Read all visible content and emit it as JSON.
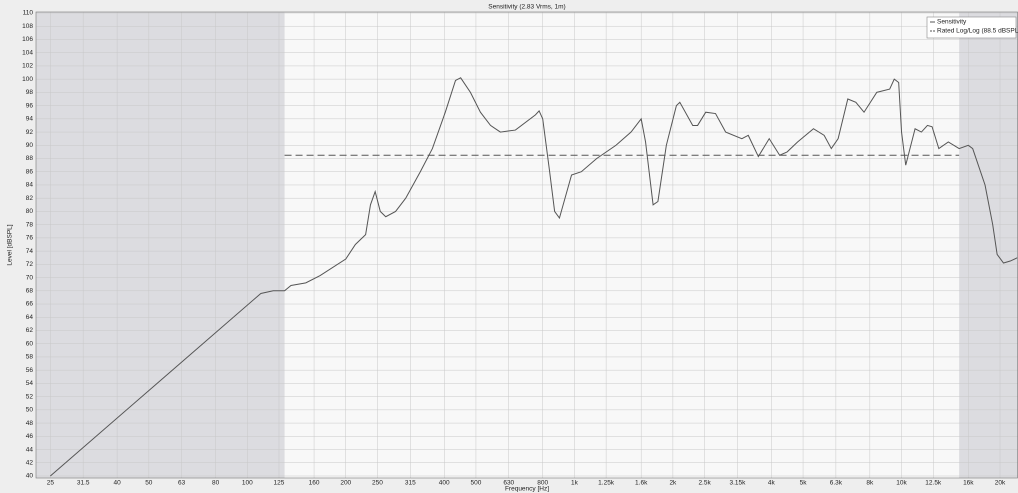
{
  "chart_data": {
    "type": "line",
    "title": "Sensitivity (2.83 Vrms, 1m)",
    "x_label": "Frequency [Hz]",
    "y_label": "Level [dBSPL]",
    "x_scale": "log",
    "xlim": [
      22.6,
      22700
    ],
    "ylim": [
      40,
      110
    ],
    "xticks": [
      25,
      31.5,
      40,
      50,
      63,
      80,
      100,
      125,
      160,
      200,
      250,
      315,
      400,
      500,
      630,
      800,
      {
        "value": 1000,
        "label": "1k"
      },
      {
        "value": 1250,
        "label": "1.25k"
      },
      {
        "value": 1600,
        "label": "1.6k"
      },
      {
        "value": 2000,
        "label": "2k"
      },
      {
        "value": 2500,
        "label": "2.5k"
      },
      {
        "value": 3150,
        "label": "3.15k"
      },
      {
        "value": 4000,
        "label": "4k"
      },
      {
        "value": 5000,
        "label": "5k"
      },
      {
        "value": 6300,
        "label": "6.3k"
      },
      {
        "value": 8000,
        "label": "8k"
      },
      {
        "value": 10000,
        "label": "10k"
      },
      {
        "value": 12500,
        "label": "12.5k"
      },
      {
        "value": 16000,
        "label": "16k"
      },
      {
        "value": 20000,
        "label": "20k"
      }
    ],
    "yticks": [
      40,
      42,
      44,
      46,
      48,
      50,
      52,
      54,
      56,
      58,
      60,
      62,
      64,
      66,
      68,
      70,
      72,
      74,
      76,
      78,
      80,
      82,
      84,
      86,
      88,
      90,
      92,
      94,
      96,
      98,
      100,
      102,
      104,
      106,
      108,
      110
    ],
    "grid": true,
    "legend": "top-right",
    "passband": [
      130,
      15000
    ],
    "x": [
      25,
      110,
      120,
      130,
      136,
      151,
      167,
      200,
      214,
      230,
      238,
      246,
      255,
      265,
      284,
      305,
      338,
      368,
      403,
      433,
      449,
      481,
      516,
      554,
      594,
      660,
      760,
      780,
      800,
      840,
      870,
      900,
      980,
      1050,
      1170,
      1340,
      1490,
      1600,
      1650,
      1740,
      1800,
      1910,
      2050,
      2100,
      2300,
      2380,
      2520,
      2700,
      2900,
      3250,
      3400,
      3650,
      3940,
      4240,
      4470,
      4810,
      5380,
      5800,
      6100,
      6400,
      6850,
      7250,
      7680,
      8400,
      9200,
      9500,
      9800,
      10000,
      10300,
      11000,
      11500,
      12000,
      12400,
      13000,
      13900,
      15000,
      16000,
      16500,
      18000,
      19000,
      19600,
      20500,
      21500,
      22600
    ],
    "series": [
      {
        "name": "Sensitivity",
        "color": "#555555",
        "values": [
          40,
          67.6,
          68,
          68,
          68.8,
          69.2,
          70.3,
          72.8,
          75,
          76.5,
          81,
          83,
          80,
          79.2,
          80,
          82,
          86,
          89.5,
          95,
          99.8,
          100.2,
          98,
          95,
          93,
          92,
          92.3,
          94.6,
          95.2,
          94,
          86,
          80,
          79,
          85.5,
          86,
          88,
          90,
          92,
          94,
          90.5,
          81,
          81.5,
          90,
          96,
          96.5,
          93,
          93,
          95,
          94.8,
          92,
          91,
          91.5,
          88.3,
          91,
          88.5,
          89,
          90.5,
          92.5,
          91.5,
          89.5,
          91,
          97,
          96.5,
          95,
          98,
          98.5,
          100,
          99.5,
          92,
          87,
          92.5,
          92,
          93,
          92.8,
          89.5,
          90.5,
          89.5,
          90,
          89.5,
          84,
          78,
          73.5,
          72.2,
          72.5,
          73
        ]
      }
    ],
    "reference": {
      "name": "Rated Log/Log (88.5 dBSPL)",
      "value": 88.5,
      "color": "#555555"
    }
  }
}
